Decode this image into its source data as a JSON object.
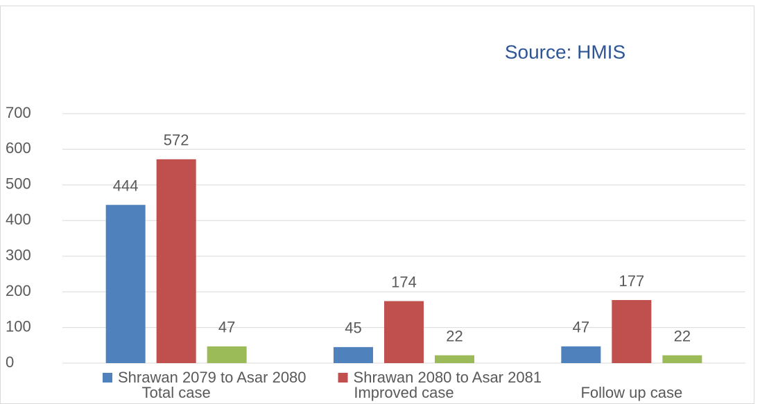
{
  "chart_data": {
    "type": "bar",
    "title": "Source: HMIS",
    "categories": [
      "Total case",
      "Improved case",
      "Follow up case"
    ],
    "series": [
      {
        "name": "Shrawan 2079 to Asar 2080",
        "color": "#4f81bd",
        "values": [
          444,
          45,
          47
        ]
      },
      {
        "name": "Shrawan 2080 to Asar 2081",
        "color": "#c0504d",
        "values": [
          572,
          174,
          177
        ]
      },
      {
        "color": "#9bbb59",
        "values": [
          47,
          22,
          22
        ]
      }
    ],
    "ylim": [
      0,
      700
    ],
    "yticks": [
      0,
      100,
      200,
      300,
      400,
      500,
      600,
      700
    ],
    "grid": true,
    "legend": "bottom"
  }
}
